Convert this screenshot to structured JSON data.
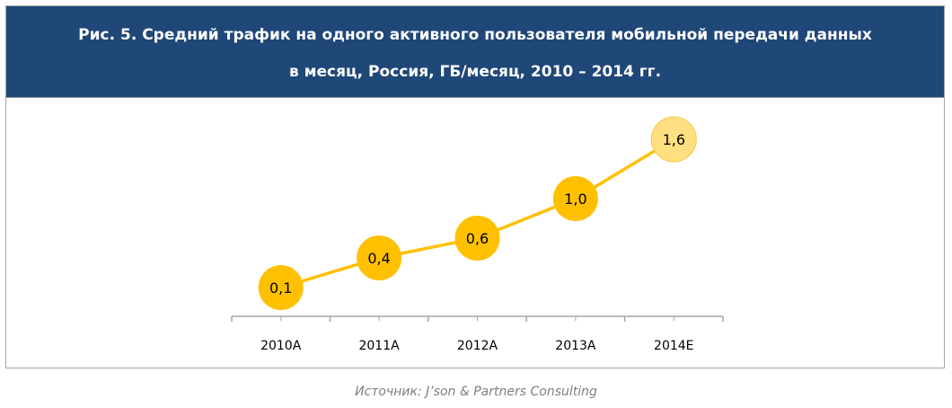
{
  "title_line1": "Рис. 5. Средний трафик на одного активного пользователя мобильной передачи данных",
  "title_line2": "в месяц, Россия, ГБ/месяц, 2010 – 2014 гг.",
  "source": "Источник: J’son & Partners Consulting",
  "colors": {
    "header": "#1f4778",
    "actual": "#ffc000",
    "estimate": "#ffdf7f",
    "line": "#ffc000"
  },
  "chart_data": {
    "type": "line",
    "title": "Рис. 5. Средний трафик на одного активного пользователя мобильной передачи данных в месяц, Россия, ГБ/месяц, 2010 – 2014 гг.",
    "categories": [
      "2010A",
      "2011A",
      "2012A",
      "2013A",
      "2014E"
    ],
    "values": [
      0.1,
      0.4,
      0.6,
      1.0,
      1.6
    ],
    "labels": [
      "0,1",
      "0,4",
      "0,6",
      "1,0",
      "1,6"
    ],
    "estimate": [
      false,
      false,
      false,
      false,
      true
    ],
    "xlabel": "",
    "ylabel": "",
    "ylim": [
      0,
      1.6
    ],
    "grid": false
  }
}
